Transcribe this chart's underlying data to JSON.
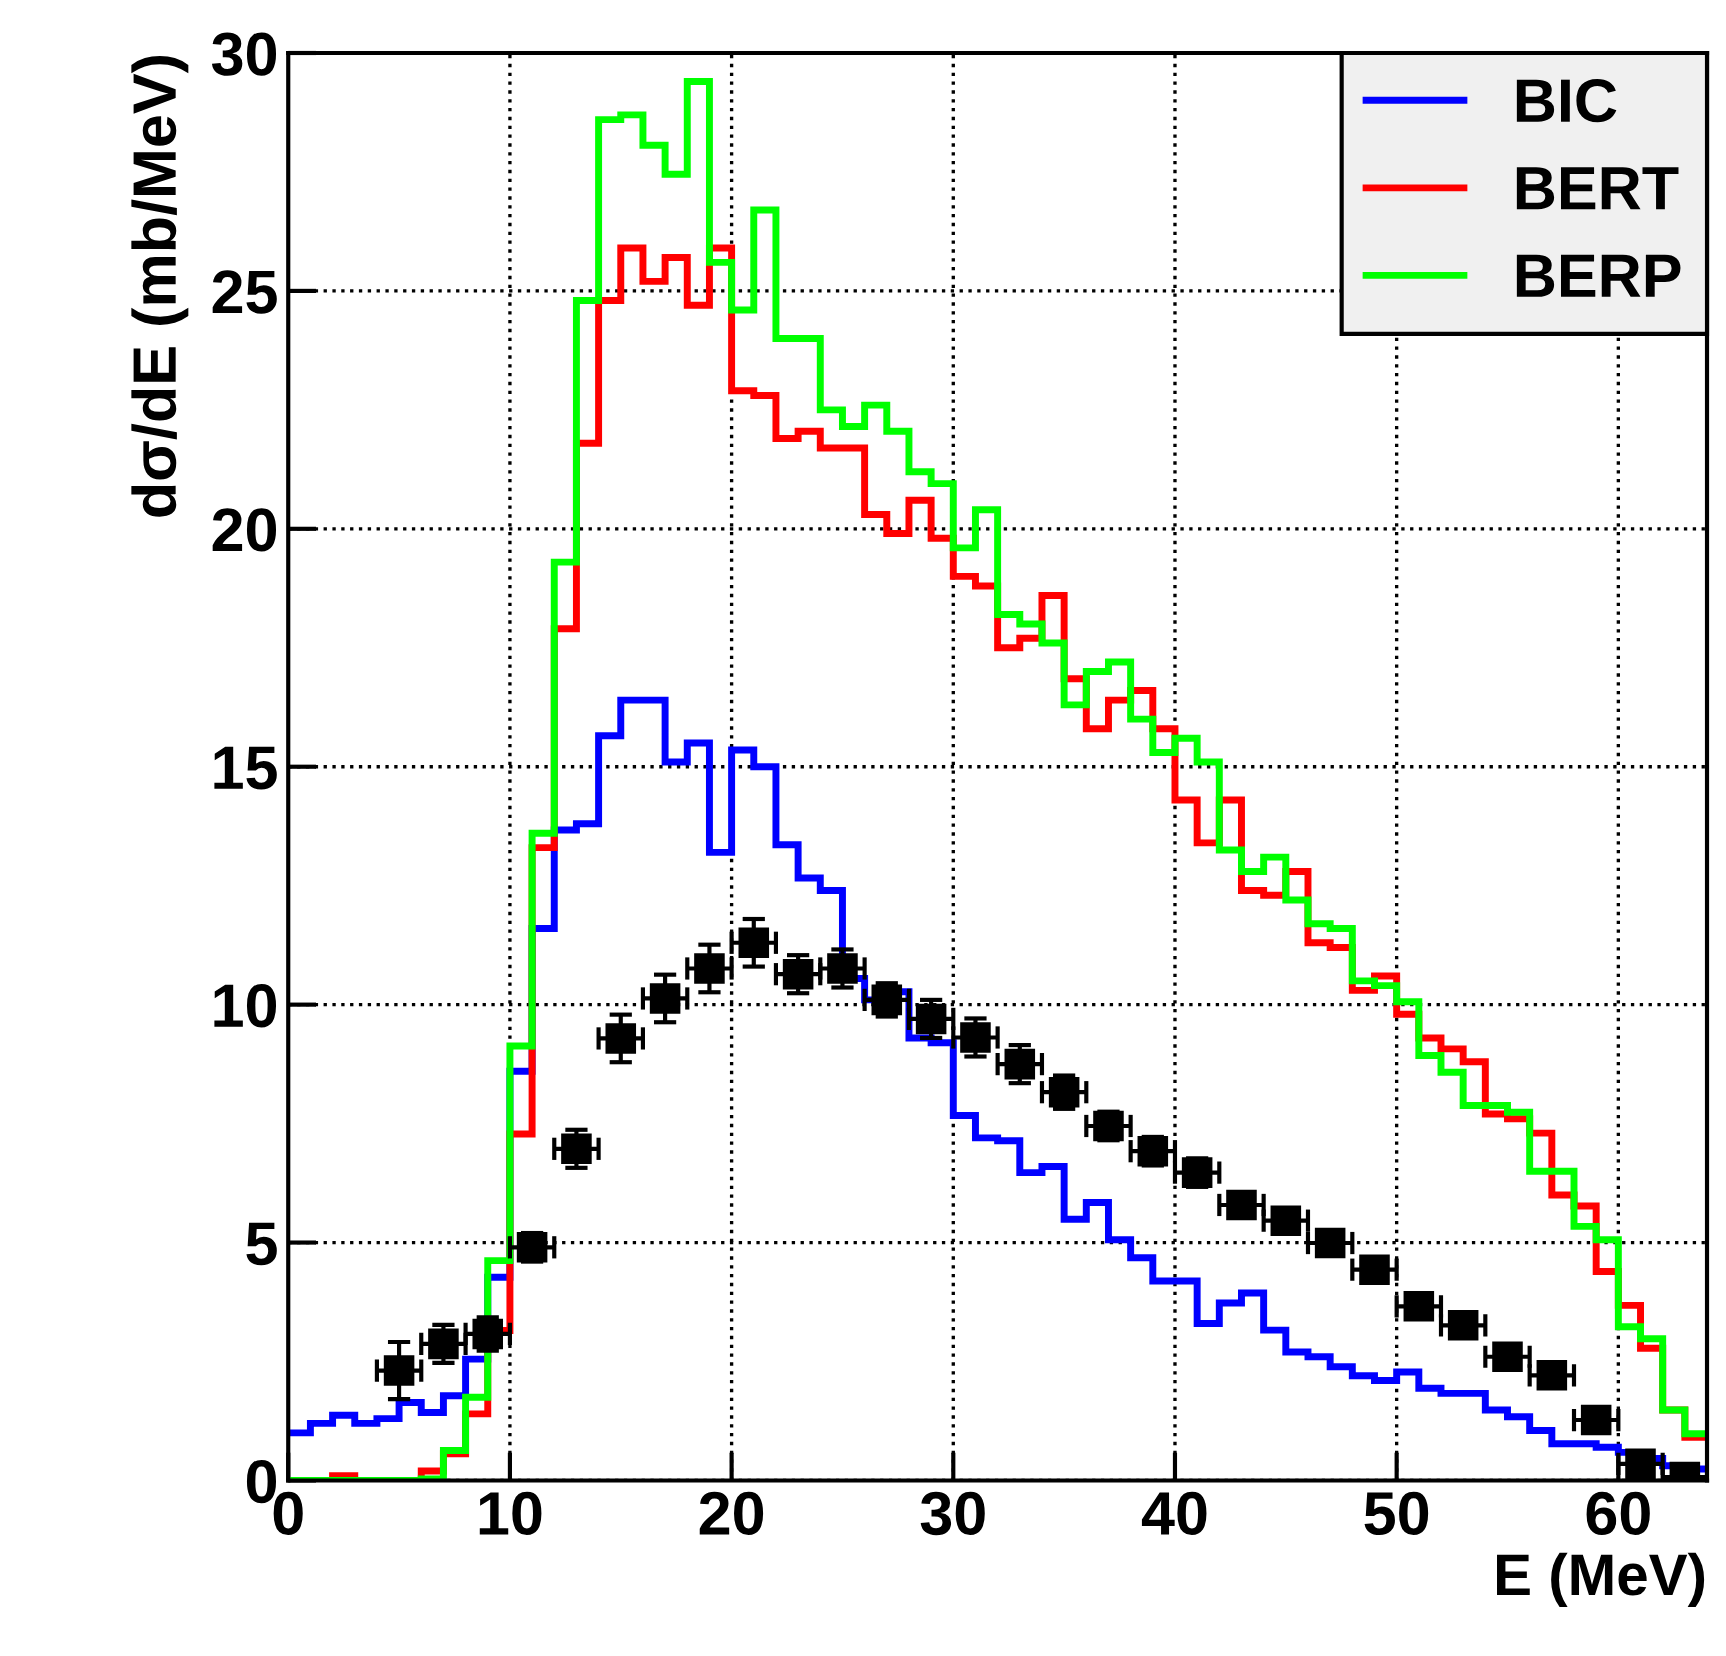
{
  "chart_data": {
    "type": "histogram",
    "xlabel": "E (MeV)",
    "ylabel": "dσ/dE (mb/MeV)",
    "bins": [
      0,
      1,
      2,
      3,
      4,
      5,
      6,
      7,
      8,
      9,
      10,
      11,
      12,
      13,
      14,
      15,
      16,
      17,
      18,
      19,
      20,
      21,
      22,
      23,
      24,
      25,
      26,
      27,
      28,
      29,
      30,
      31,
      32,
      33,
      34,
      35,
      36,
      37,
      38,
      39,
      40,
      41,
      42,
      43,
      44,
      45,
      46,
      47,
      48,
      49,
      50,
      51,
      52,
      53,
      54,
      55,
      56,
      57,
      58,
      59,
      60,
      61,
      62,
      63,
      64
    ],
    "series": [
      {
        "name": "BIC",
        "color": "#0000ff",
        "values": [
          1.0,
          1.2,
          1.37,
          1.2,
          1.3,
          1.64,
          1.43,
          1.78,
          2.55,
          4.27,
          8.6,
          11.6,
          13.67,
          13.8,
          15.65,
          16.4,
          16.4,
          15.1,
          15.5,
          13.2,
          15.35,
          15.0,
          13.36,
          12.66,
          12.4,
          10.55,
          10.1,
          10.27,
          9.3,
          9.2,
          7.67,
          7.2,
          7.14,
          6.47,
          6.6,
          5.49,
          5.84,
          5.06,
          4.68,
          4.19,
          4.19,
          3.3,
          3.73,
          3.94,
          3.16,
          2.7,
          2.6,
          2.39,
          2.2,
          2.1,
          2.28,
          1.94,
          1.83,
          1.83,
          1.48,
          1.34,
          1.05,
          0.77,
          0.77,
          0.7,
          0.59,
          0.46,
          0.31,
          0.24
        ]
      },
      {
        "name": "BERT",
        "color": "#ff0000",
        "values": [
          0,
          0,
          0.1,
          0,
          0,
          0,
          0.2,
          0.56,
          1.4,
          3.15,
          7.28,
          13.3,
          17.9,
          21.8,
          24.8,
          25.9,
          25.2,
          25.7,
          24.7,
          25.9,
          22.9,
          22.8,
          21.9,
          22.05,
          21.7,
          21.7,
          20.3,
          19.9,
          20.6,
          19.8,
          19.0,
          18.8,
          17.5,
          17.7,
          18.6,
          16.85,
          15.8,
          16.4,
          16.6,
          15.8,
          14.3,
          13.4,
          14.3,
          12.4,
          12.3,
          12.8,
          11.3,
          11.2,
          10.3,
          10.6,
          9.8,
          9.3,
          9.07,
          8.8,
          7.7,
          7.6,
          7.3,
          6.0,
          5.77,
          4.39,
          3.68,
          2.78,
          1.48,
          0.91
        ]
      },
      {
        "name": "BERP",
        "color": "#00ff00",
        "values": [
          0,
          0,
          0,
          0,
          0,
          0,
          0.03,
          0.63,
          1.75,
          4.62,
          9.13,
          13.6,
          19.3,
          24.8,
          28.6,
          28.7,
          28.06,
          27.45,
          29.4,
          25.6,
          24.6,
          26.7,
          24.0,
          24.0,
          22.5,
          22.15,
          22.6,
          22.05,
          21.2,
          20.95,
          19.6,
          20.4,
          18.2,
          18.0,
          17.6,
          16.3,
          17.0,
          17.2,
          16.0,
          15.3,
          15.6,
          15.1,
          13.25,
          12.8,
          13.1,
          12.2,
          11.7,
          11.6,
          10.5,
          10.4,
          10.06,
          8.93,
          8.58,
          7.88,
          7.88,
          7.74,
          6.5,
          6.5,
          5.34,
          5.06,
          3.23,
          2.98,
          1.48,
          0.98
        ]
      },
      {
        "type": "scatter",
        "color": "#000000",
        "marker": "square",
        "x": [
          5,
          7,
          9,
          11,
          13,
          15,
          17,
          19,
          21,
          23,
          25,
          27,
          29,
          31,
          33,
          35,
          37,
          39,
          41,
          43,
          45,
          47,
          49,
          51,
          53,
          55,
          57,
          59,
          61,
          63
        ],
        "values": [
          2.31,
          2.87,
          3.08,
          4.9,
          6.97,
          9.29,
          10.13,
          10.76,
          11.3,
          10.64,
          10.76,
          10.1,
          9.7,
          9.31,
          8.75,
          8.16,
          7.45,
          6.92,
          6.47,
          5.79,
          5.46,
          4.99,
          4.43,
          3.66,
          3.26,
          2.6,
          2.21,
          1.27,
          0.35,
          0.07
        ],
        "errors": [
          0.6,
          0.4,
          0.35,
          0.3,
          0.4,
          0.5,
          0.5,
          0.5,
          0.5,
          0.4,
          0.4,
          0.35,
          0.4,
          0.4,
          0.4,
          0.35,
          0.3,
          0.3,
          0.3,
          0.2,
          null,
          null,
          null,
          null,
          null,
          null,
          null,
          null,
          null,
          null
        ],
        "xerrors": [
          1,
          1,
          1,
          1,
          1,
          1,
          1,
          1,
          1,
          1,
          1,
          1,
          1,
          1,
          1,
          1,
          1,
          1,
          1,
          1,
          1,
          1,
          1,
          1,
          1,
          1,
          1,
          1,
          1,
          1
        ]
      }
    ],
    "xlim": [
      0,
      64
    ],
    "ylim": [
      0,
      30
    ],
    "xticks": [
      0,
      10,
      20,
      30,
      40,
      50,
      60
    ],
    "yticks": [
      0,
      5,
      10,
      15,
      20,
      25,
      30
    ],
    "grid": true,
    "legend": "top right"
  }
}
